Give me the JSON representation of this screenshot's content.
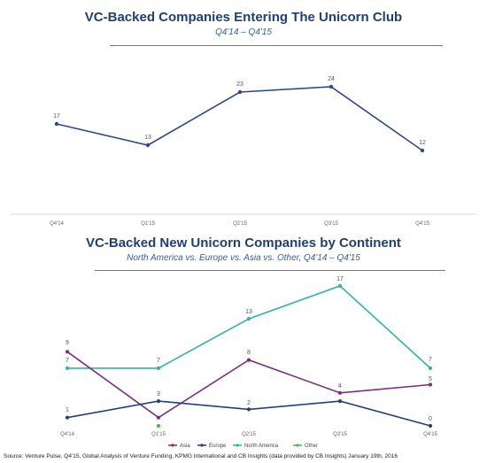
{
  "chart_data": [
    {
      "type": "line",
      "title": "VC-Backed Companies Entering The Unicorn Club",
      "subtitle": "Q4'14 – Q4'15",
      "categories": [
        "Q4'14",
        "Q1'15",
        "Q2'15",
        "Q3'15",
        "Q4'15"
      ],
      "series": [
        {
          "values": [
            17,
            13,
            23,
            24,
            12
          ],
          "color": "#2b4a8b"
        }
      ],
      "xlabel": "",
      "ylabel": "",
      "ylim": [
        0,
        30
      ],
      "grid": false
    },
    {
      "type": "line",
      "title": "VC-Backed New Unicorn Companies by Continent",
      "subtitle": "North America vs. Europe vs. Asia vs. Other, Q4'14 – Q4'15",
      "categories": [
        "Q4'14",
        "Q1'15",
        "Q2'15",
        "Q3'15",
        "Q4'15"
      ],
      "series": [
        {
          "name": "Asia",
          "values": [
            9,
            1,
            8,
            4,
            5
          ],
          "color": "#7b2d83"
        },
        {
          "name": "Europe",
          "values": [
            1,
            3,
            2,
            3,
            0
          ],
          "color": "#23407e"
        },
        {
          "name": "North America",
          "values": [
            7,
            7,
            13,
            17,
            7
          ],
          "color": "#2fb3ad"
        },
        {
          "name": "Other",
          "values": [
            null,
            0,
            null,
            null,
            null
          ],
          "color": "#49b84a"
        }
      ],
      "legend_position": "bottom-center",
      "xlabel": "",
      "ylabel": "",
      "ylim": [
        0,
        18
      ],
      "grid": false
    }
  ],
  "labels1": [
    "17",
    "13",
    "23",
    "24",
    "12"
  ],
  "labels2": {
    "asia": [
      "9",
      "1",
      "8",
      "4",
      "5"
    ],
    "europe": [
      "1",
      "3",
      "2",
      "3",
      "0"
    ],
    "na": [
      "7",
      "7",
      "13",
      "17",
      "7"
    ]
  },
  "source": "Source: Venture Pulse, Q4'15, Global Analysis of Venture Funding, KPMG International and CB Insights (data provided by CB Insights) January 19th, 2016"
}
